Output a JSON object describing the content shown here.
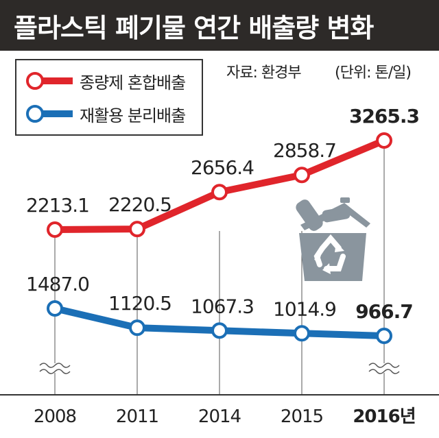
{
  "title": "플라스틱 폐기물 연간 배출량 변화",
  "source": "자료: 환경부",
  "unit": "(단위: 톤/일)",
  "colors": {
    "header_bg": "#2d2a28",
    "mixed": "#e0252b",
    "recycled": "#1b6fb6",
    "trash_icon": "#8a959e"
  },
  "icons": [
    "recycle-bin-icon",
    "axis-break-icon"
  ],
  "chart_data": {
    "type": "line",
    "categories": [
      "2008",
      "2011",
      "2014",
      "2015",
      "2016년"
    ],
    "series": [
      {
        "name": "종량제 혼합배출",
        "values": [
          2213.1,
          2220.5,
          2656.4,
          2858.7,
          3265.3
        ],
        "labels": [
          "2213.1",
          "2220.5",
          "2656.4",
          "2858.7",
          "3265.3"
        ]
      },
      {
        "name": "재활용 분리배출",
        "values": [
          1487.0,
          1120.5,
          1067.3,
          1014.9,
          966.7
        ],
        "labels": [
          "1487.0",
          "1120.5",
          "1067.3",
          "1014.9",
          "966.7"
        ]
      }
    ],
    "axis_break": true,
    "grid": false,
    "legend": "top-left"
  }
}
